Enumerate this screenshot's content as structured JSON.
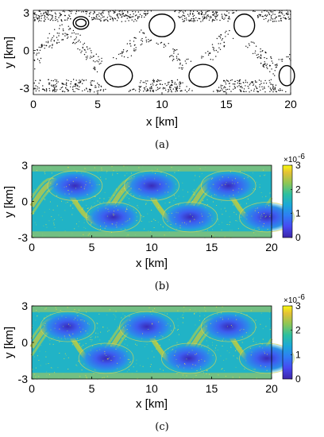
{
  "panels": [
    {
      "id": "a",
      "caption": "(a)",
      "chart_data": {
        "type": "scatter",
        "xlabel": "x [km]",
        "ylabel": "y [km]",
        "xlim": [
          0,
          20
        ],
        "ylim": [
          -3.5,
          3.2
        ],
        "xticks": [
          "0",
          "5",
          "10",
          "15",
          "20"
        ],
        "yticks": [
          "3",
          "0",
          "-3"
        ],
        "grid": false,
        "legend": "none",
        "series_description_points": "Poincaré-section dot clouds (chaotic sea) with closed invariant curves around vortex centres",
        "closed_curves": [
          {
            "cx": 3.7,
            "cy": 2.2,
            "rx": 0.6,
            "ry": 0.5
          },
          {
            "cx": 3.7,
            "cy": 2.2,
            "rx": 0.4,
            "ry": 0.3
          },
          {
            "cx": 10.0,
            "cy": 2.0,
            "rx": 1.0,
            "ry": 0.9
          },
          {
            "cx": 16.4,
            "cy": 2.0,
            "rx": 0.8,
            "ry": 0.9
          },
          {
            "cx": 6.6,
            "cy": -2.0,
            "rx": 1.1,
            "ry": 0.9
          },
          {
            "cx": 13.2,
            "cy": -2.0,
            "rx": 1.1,
            "ry": 0.9
          },
          {
            "cx": 19.7,
            "cy": -2.0,
            "rx": 0.6,
            "ry": 0.8
          }
        ]
      }
    },
    {
      "id": "b",
      "caption": "(b)",
      "chart_data": {
        "type": "heatmap",
        "xlabel": "x [km]",
        "ylabel": "y [km]",
        "xlim": [
          0,
          20
        ],
        "ylim": [
          -3,
          3
        ],
        "xticks": [
          "0",
          "5",
          "10",
          "15",
          "20"
        ],
        "yticks": [
          "3",
          "0",
          "-3"
        ],
        "colorbar": {
          "min": 0,
          "max": 3,
          "ticks": [
            "3",
            "2",
            "1",
            "0"
          ],
          "exponent_label": "×10",
          "exponent_power": "-6",
          "colormap": "parula"
        },
        "vortices": [
          {
            "cx": 3.6,
            "cy": 1.3
          },
          {
            "cx": 10.0,
            "cy": 1.3
          },
          {
            "cx": 16.4,
            "cy": 1.3
          },
          {
            "cx": 6.8,
            "cy": -1.3
          },
          {
            "cx": 13.2,
            "cy": -1.3
          },
          {
            "cx": 19.6,
            "cy": -1.3
          }
        ]
      }
    },
    {
      "id": "c",
      "caption": "(c)",
      "chart_data": {
        "type": "heatmap",
        "xlabel": "x [km]",
        "ylabel": "y [km]",
        "xlim": [
          0,
          20
        ],
        "ylim": [
          -3,
          3
        ],
        "xticks": [
          "0",
          "5",
          "10",
          "15",
          "20"
        ],
        "yticks": [
          "3",
          "0",
          "-3"
        ],
        "colorbar": {
          "min": 0,
          "max": 3,
          "ticks": [
            "3",
            "2",
            "1",
            "0"
          ],
          "exponent_label": "×10",
          "exponent_power": "-6",
          "colormap": "parula"
        },
        "vortices": [
          {
            "cx": 3.0,
            "cy": 1.3
          },
          {
            "cx": 9.6,
            "cy": 1.3
          },
          {
            "cx": 16.4,
            "cy": 1.3
          },
          {
            "cx": 6.2,
            "cy": -1.3
          },
          {
            "cx": 13.1,
            "cy": -1.3
          },
          {
            "cx": 19.6,
            "cy": -1.3
          }
        ]
      }
    }
  ],
  "colors": {
    "low": "#3d26a8",
    "mid": "#21b3c6",
    "high": "#f9fb0e",
    "dots": "#111111"
  }
}
